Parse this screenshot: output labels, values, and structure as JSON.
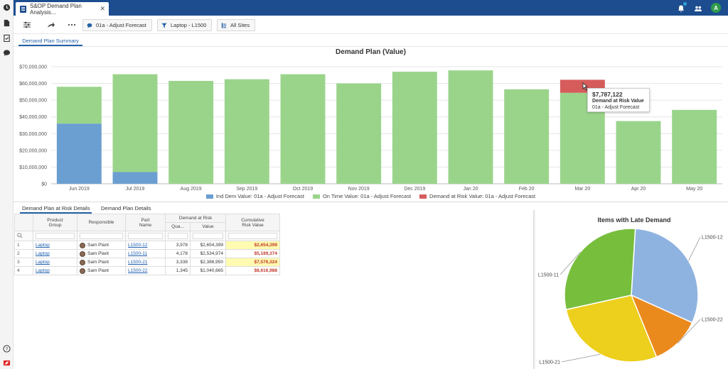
{
  "window": {
    "tab_title": "S&OP Demand Plan Analysis...",
    "avatar_initial": "A"
  },
  "toolbar": {
    "chips": [
      "01a - Adjust Forecast",
      "Laptop - L1500",
      "All Sites"
    ]
  },
  "view_tabs": [
    "Demand Plan Summary"
  ],
  "tooltip": {
    "value": "$7,787,122",
    "label": "Demand at Risk Value",
    "scenario": "01a - Adjust Forecast"
  },
  "chart_data": [
    {
      "type": "bar",
      "stacked": true,
      "title": "Demand Plan (Value)",
      "categories": [
        "Jun 2019",
        "Jul 2019",
        "Aug 2019",
        "Sep 2019",
        "Oct 2019",
        "Nov 2019",
        "Dec 2019",
        "Jan 20",
        "Feb 20",
        "Mar 20",
        "Apr 20",
        "May 20"
      ],
      "series": [
        {
          "name": "Ind Dem Value: 01a - Adjust Forecast",
          "color": "#6b9fd1",
          "values": [
            36000000,
            7000000,
            0,
            0,
            0,
            0,
            0,
            0,
            0,
            0,
            0,
            0
          ]
        },
        {
          "name": "On Time Value: 01a - Adjust Forecast",
          "color": "#9ad48b",
          "values": [
            22000000,
            58500000,
            61500000,
            62500000,
            65500000,
            60000000,
            67000000,
            67800000,
            56500000,
            54400000,
            37500000,
            44200000
          ]
        },
        {
          "name": "Demand at Risk Value: 01a - Adjust Forecast",
          "color": "#d65c5c",
          "values": [
            0,
            0,
            0,
            0,
            0,
            0,
            0,
            0,
            0,
            7787122,
            0,
            0
          ]
        }
      ],
      "ylim": [
        0,
        70000000
      ],
      "yticks": [
        "$0",
        "$10,000,000",
        "$20,000,000",
        "$30,000,000",
        "$40,000,000",
        "$50,000,000",
        "$60,000,000",
        "$70,000,000"
      ],
      "legend": "bottom",
      "grid": true
    },
    {
      "type": "pie",
      "title": "Items with Late Demand",
      "slices": [
        {
          "label": "L1500-12",
          "value": 2654399,
          "color": "#8fb3e0"
        },
        {
          "label": "L1500-22",
          "value": 1040665,
          "color": "#eb8a1c"
        },
        {
          "label": "L1500-21",
          "value": 2386950,
          "color": "#edcf1d"
        },
        {
          "label": "L1500-11",
          "value": 2534974,
          "color": "#77be3d"
        }
      ]
    }
  ],
  "bottom_tabs": [
    "Demand Plan at Risk Details",
    "Demand Plan Details"
  ],
  "table": {
    "headers": {
      "product_group": [
        "Product",
        "Group"
      ],
      "responsible": "Responsible",
      "part_name": [
        "Part",
        "Name"
      ],
      "demand_at_risk": "Demand at Risk",
      "quantity": "Qua...",
      "value": "Value",
      "cumulative": [
        "Cumulative",
        "Risk Value"
      ]
    },
    "rows": [
      {
        "n": "1",
        "group": "Laptop",
        "responsible": "Sam Plant",
        "part": "L1500-12",
        "qty": "3,978",
        "value": "$2,654,399",
        "cum": "$2,654,399"
      },
      {
        "n": "2",
        "group": "Laptop",
        "responsible": "Sam Plant",
        "part": "L1500-11",
        "qty": "4,178",
        "value": "$2,534,974",
        "cum": "$5,189,374"
      },
      {
        "n": "3",
        "group": "Laptop",
        "responsible": "Sam Plant",
        "part": "L1500-21",
        "qty": "3,338",
        "value": "$2,386,950",
        "cum": "$7,576,324"
      },
      {
        "n": "4",
        "group": "Laptop",
        "responsible": "Sam Plant",
        "part": "L1500-22",
        "qty": "1,345",
        "value": "$1,040,665",
        "cum": "$8,616,988"
      }
    ]
  }
}
